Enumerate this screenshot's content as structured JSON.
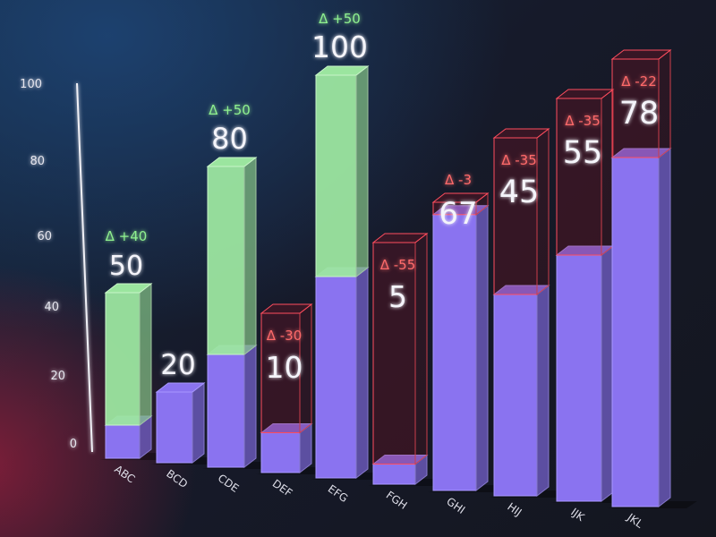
{
  "chart_data": {
    "type": "bar",
    "style": "3d-stacked-with-deltas",
    "categories": [
      "ABC",
      "BCD",
      "CDE",
      "DEF",
      "EFG",
      "FGH",
      "GHI",
      "HIJ",
      "IJK",
      "JKL"
    ],
    "values": [
      50,
      20,
      80,
      10,
      100,
      5,
      67,
      45,
      55,
      78
    ],
    "deltas": [
      "Δ +40",
      "",
      "Δ +50",
      "Δ -30",
      "Δ +50",
      "Δ -55",
      "Δ -3",
      "Δ -35",
      "Δ -35",
      "Δ -22"
    ],
    "delta_numbers": [
      40,
      0,
      50,
      -30,
      50,
      -55,
      -3,
      -35,
      -35,
      -22
    ],
    "base_values": [
      10,
      20,
      30,
      40,
      50,
      60,
      70,
      80,
      90,
      100
    ],
    "value_labels": [
      "50",
      "20",
      "80",
      "10",
      "100",
      "5",
      "67",
      "45",
      "55",
      "78"
    ],
    "yticks": [
      "0",
      "20",
      "40",
      "60",
      "80",
      "100"
    ],
    "ylim": [
      0,
      100
    ],
    "colors": {
      "base": "#8a73f0",
      "increase": "#9ce6a0",
      "decrease": "#ff4d5e",
      "increase_text": "#8ff08f",
      "decrease_text": "#ff6b6b"
    }
  }
}
